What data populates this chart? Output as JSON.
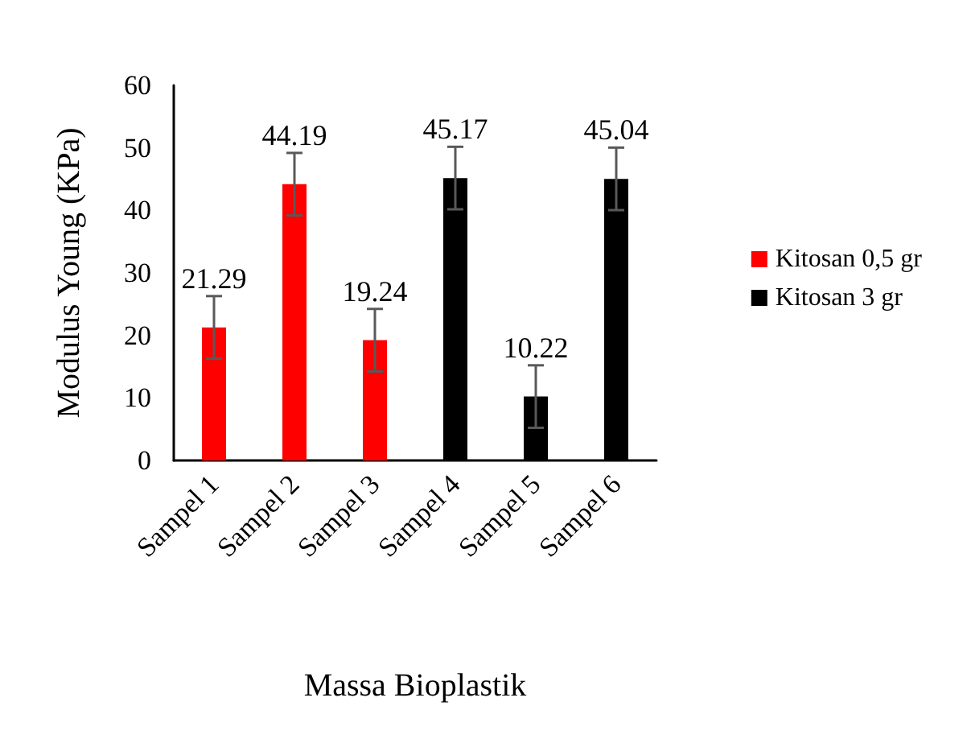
{
  "chart_data": {
    "type": "bar",
    "xlabel": "Massa Bioplastik",
    "ylabel": "Modulus Young (KPa)",
    "categories": [
      "Sampel 1",
      "Sampel 2",
      "Sampel 3",
      "Sampel 4",
      "Sampel 5",
      "Sampel 6"
    ],
    "series": [
      {
        "name": "Kitosan 0,5 gr",
        "color": "#ff0000",
        "values": [
          21.29,
          44.19,
          19.24,
          null,
          null,
          null
        ],
        "errors": [
          5,
          5,
          5,
          null,
          null,
          null
        ]
      },
      {
        "name": "Kitosan 3 gr",
        "color": "#000000",
        "values": [
          null,
          null,
          null,
          45.17,
          10.22,
          45.04
        ],
        "errors": [
          null,
          null,
          null,
          5,
          5,
          5
        ]
      }
    ],
    "ylim": [
      0,
      60
    ],
    "yticks": [
      0,
      10,
      20,
      30,
      40,
      50,
      60
    ],
    "grid": false,
    "legend": "right",
    "data_labels": true
  }
}
